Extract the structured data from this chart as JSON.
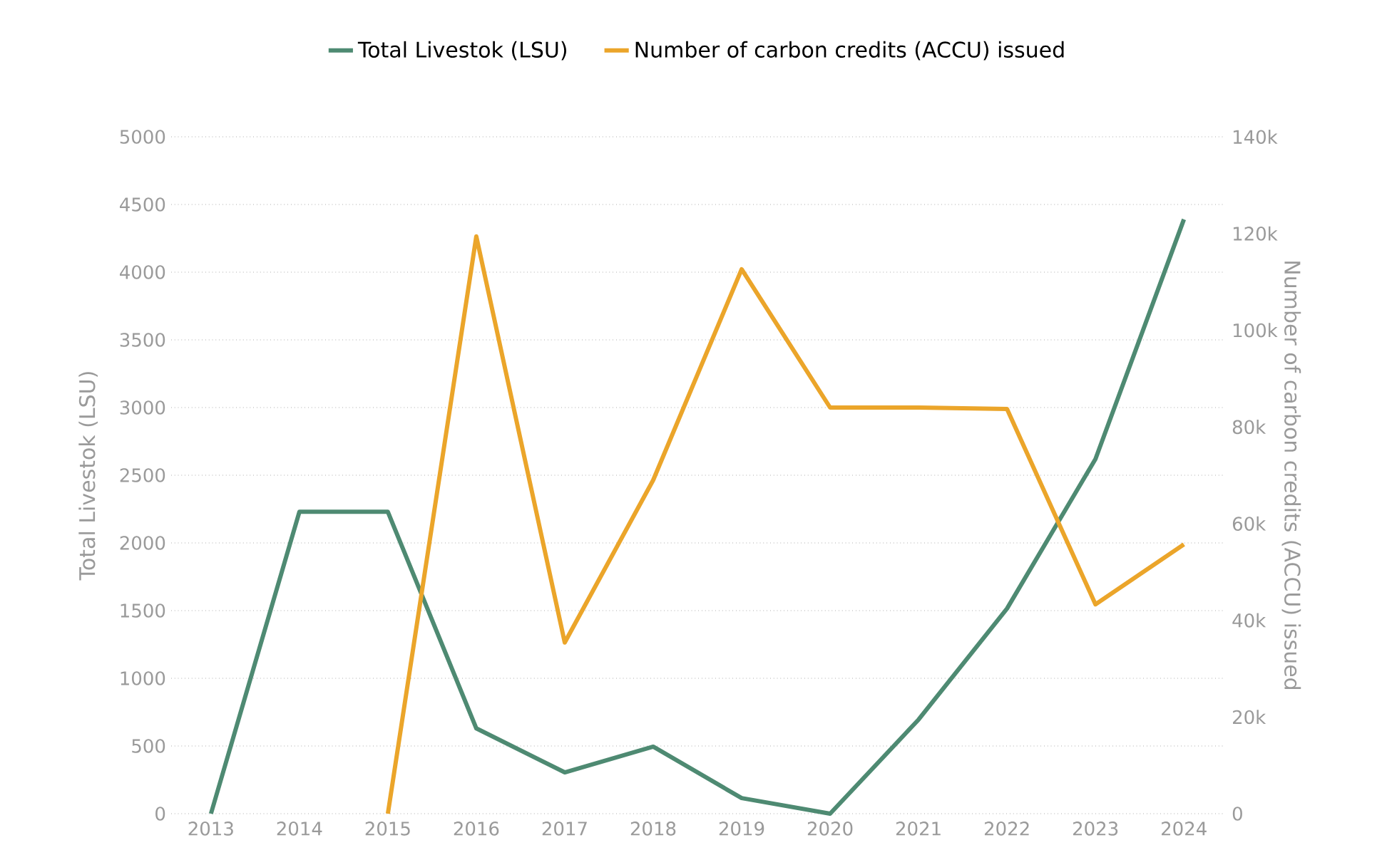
{
  "chart_data": {
    "type": "line",
    "ylabel": "Total Livestok (LSU)",
    "y2label": "Number of carbon credits (ACCU) issued",
    "categories": [
      "2013",
      "2014",
      "2015",
      "2016",
      "2017",
      "2018",
      "2019",
      "2020",
      "2021",
      "2022",
      "2023",
      "2024"
    ],
    "series": [
      {
        "name": "Total Livestok (LSU)",
        "color": "#4e8a72",
        "axis": "y",
        "values": [
          0,
          2230,
          2230,
          630,
          305,
          495,
          115,
          0,
          695,
          1515,
          2620,
          4390
        ]
      },
      {
        "name": "Number of carbon credits (ACCU) issued",
        "color": "#eba52a",
        "axis": "y2",
        "values": [
          null,
          null,
          0,
          119400,
          35400,
          69000,
          112600,
          84000,
          84000,
          83700,
          43300,
          55700
        ]
      }
    ],
    "ylim": [
      0,
      5000
    ],
    "yticks": [
      0,
      500,
      1000,
      1500,
      2000,
      2500,
      3000,
      3500,
      4000,
      4500,
      5000
    ],
    "y2lim": [
      0,
      140000
    ],
    "y2ticks": [
      {
        "value": 0,
        "label": "0"
      },
      {
        "value": 20000,
        "label": "20k"
      },
      {
        "value": 40000,
        "label": "40k"
      },
      {
        "value": 60000,
        "label": "60k"
      },
      {
        "value": 80000,
        "label": "80k"
      },
      {
        "value": 100000,
        "label": "100k"
      },
      {
        "value": 120000,
        "label": "120k"
      },
      {
        "value": 140000,
        "label": "140k"
      }
    ],
    "grid": "y",
    "legend": "top",
    "marker": "none",
    "line_style": "solid"
  }
}
